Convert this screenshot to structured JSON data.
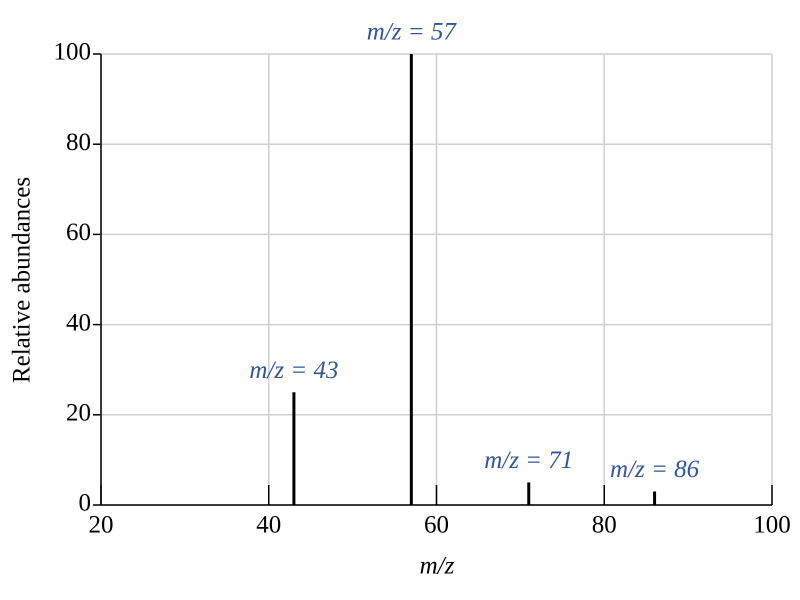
{
  "chart_data": {
    "type": "stem",
    "x_label": "m/z",
    "y_label": "Relative abundances",
    "x": [
      43,
      57,
      71,
      86
    ],
    "values": [
      25,
      100,
      5,
      3
    ],
    "value_labels": [
      "m/z = 43",
      "m/z = 57",
      "m/z = 71",
      "m/z = 86"
    ],
    "color": "#000000",
    "label_color": "#2f55a4",
    "xlim": [
      20,
      100
    ],
    "xticks": [
      20,
      40,
      60,
      80,
      100
    ],
    "ylim": [
      0,
      100
    ],
    "yticks": [
      0,
      20,
      40,
      60,
      80,
      100
    ],
    "grid": true
  }
}
